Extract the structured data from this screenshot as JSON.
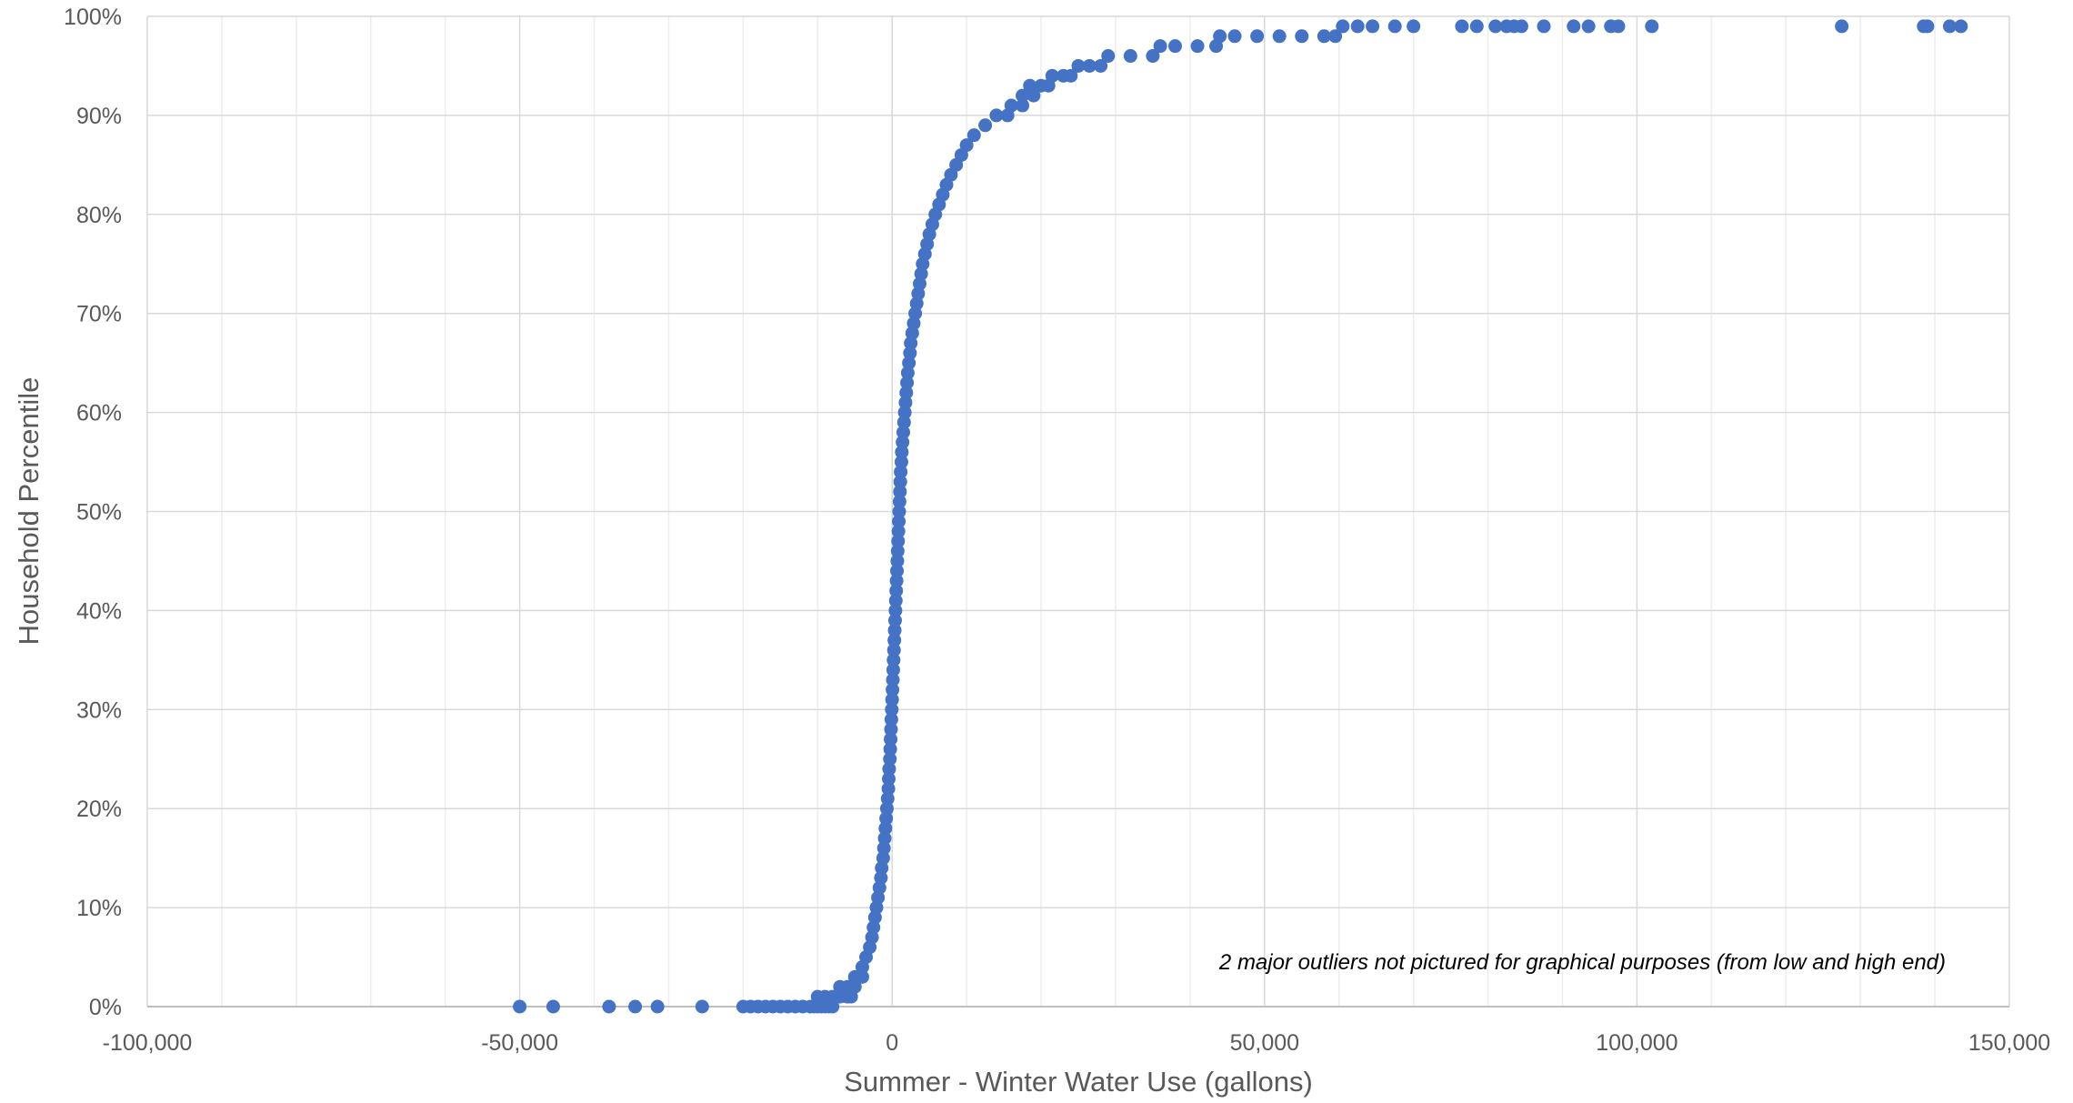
{
  "chart_data": {
    "type": "scatter",
    "title": "",
    "xlabel": "Summer - Winter Water Use (gallons)",
    "ylabel": "Household Percentile",
    "xlim": [
      -100000,
      150000
    ],
    "ylim": [
      0,
      100
    ],
    "x_ticks": [
      "-100,000",
      "-50,000",
      "0",
      "50,000",
      "100,000",
      "150,000"
    ],
    "y_ticks": [
      "0%",
      "10%",
      "20%",
      "30%",
      "40%",
      "50%",
      "60%",
      "70%",
      "80%",
      "90%",
      "100%"
    ],
    "grid": true,
    "legend": "none",
    "color": "#4472C4",
    "annotation": "2 major outliers not pictured for graphical purposes (from low and high end)",
    "series": [
      {
        "points": [
          [
            -50000,
            0
          ],
          [
            -45500,
            0
          ],
          [
            -38000,
            0
          ],
          [
            -34500,
            0
          ],
          [
            -31500,
            0
          ],
          [
            -25500,
            0
          ],
          [
            -20000,
            0
          ],
          [
            -19000,
            0
          ],
          [
            -18000,
            0
          ],
          [
            -17000,
            0
          ],
          [
            -16000,
            0
          ],
          [
            -15000,
            0
          ],
          [
            -14000,
            0
          ],
          [
            -13000,
            0
          ],
          [
            -12000,
            0
          ],
          [
            -11000,
            0
          ],
          [
            -10500,
            0
          ],
          [
            -10000,
            0
          ],
          [
            -9500,
            0
          ],
          [
            -9000,
            0
          ],
          [
            -8500,
            0
          ],
          [
            -8000,
            0
          ],
          [
            -10000,
            1
          ],
          [
            -9000,
            1
          ],
          [
            -8000,
            1
          ],
          [
            -7000,
            1
          ],
          [
            -6000,
            1
          ],
          [
            -5500,
            1
          ],
          [
            -7000,
            2
          ],
          [
            -6000,
            2
          ],
          [
            -5000,
            2
          ],
          [
            -5000,
            3
          ],
          [
            -4000,
            3
          ],
          [
            -4000,
            4
          ],
          [
            -3500,
            5
          ],
          [
            -3000,
            6
          ],
          [
            -2700,
            7
          ],
          [
            -2500,
            8
          ],
          [
            -2300,
            9
          ],
          [
            -2100,
            10
          ],
          [
            -1900,
            11
          ],
          [
            -1700,
            12
          ],
          [
            -1500,
            13
          ],
          [
            -1400,
            14
          ],
          [
            -1200,
            15
          ],
          [
            -1100,
            16
          ],
          [
            -1000,
            17
          ],
          [
            -900,
            18
          ],
          [
            -800,
            19
          ],
          [
            -700,
            20
          ],
          [
            -600,
            21
          ],
          [
            -500,
            22
          ],
          [
            -450,
            23
          ],
          [
            -400,
            24
          ],
          [
            -300,
            25
          ],
          [
            -250,
            26
          ],
          [
            -200,
            27
          ],
          [
            -150,
            28
          ],
          [
            -100,
            29
          ],
          [
            -50,
            30
          ],
          [
            0,
            31
          ],
          [
            50,
            32
          ],
          [
            100,
            33
          ],
          [
            150,
            34
          ],
          [
            200,
            35
          ],
          [
            250,
            36
          ],
          [
            300,
            37
          ],
          [
            350,
            38
          ],
          [
            400,
            39
          ],
          [
            450,
            40
          ],
          [
            500,
            41
          ],
          [
            550,
            42
          ],
          [
            600,
            43
          ],
          [
            650,
            44
          ],
          [
            700,
            45
          ],
          [
            750,
            46
          ],
          [
            800,
            47
          ],
          [
            850,
            48
          ],
          [
            900,
            49
          ],
          [
            950,
            50
          ],
          [
            1000,
            51
          ],
          [
            1050,
            52
          ],
          [
            1100,
            53
          ],
          [
            1150,
            54
          ],
          [
            1250,
            55
          ],
          [
            1300,
            56
          ],
          [
            1400,
            57
          ],
          [
            1500,
            58
          ],
          [
            1600,
            59
          ],
          [
            1700,
            60
          ],
          [
            1800,
            61
          ],
          [
            1900,
            62
          ],
          [
            2000,
            63
          ],
          [
            2100,
            64
          ],
          [
            2250,
            65
          ],
          [
            2400,
            66
          ],
          [
            2500,
            67
          ],
          [
            2700,
            68
          ],
          [
            2900,
            69
          ],
          [
            3100,
            70
          ],
          [
            3300,
            71
          ],
          [
            3500,
            72
          ],
          [
            3700,
            73
          ],
          [
            3900,
            74
          ],
          [
            4100,
            75
          ],
          [
            4400,
            76
          ],
          [
            4700,
            77
          ],
          [
            5000,
            78
          ],
          [
            5400,
            79
          ],
          [
            5800,
            80
          ],
          [
            6300,
            81
          ],
          [
            6800,
            82
          ],
          [
            7300,
            83
          ],
          [
            7900,
            84
          ],
          [
            8600,
            85
          ],
          [
            9300,
            86
          ],
          [
            10000,
            87
          ],
          [
            11000,
            88
          ],
          [
            12500,
            89
          ],
          [
            14000,
            90
          ],
          [
            15500,
            90
          ],
          [
            16000,
            91
          ],
          [
            17500,
            91
          ],
          [
            17500,
            92
          ],
          [
            19000,
            92
          ],
          [
            18500,
            93
          ],
          [
            20000,
            93
          ],
          [
            21000,
            93
          ],
          [
            21500,
            94
          ],
          [
            23000,
            94
          ],
          [
            24000,
            94
          ],
          [
            25000,
            95
          ],
          [
            26500,
            95
          ],
          [
            28000,
            95
          ],
          [
            29000,
            96
          ],
          [
            32000,
            96
          ],
          [
            35000,
            96
          ],
          [
            36000,
            97
          ],
          [
            38000,
            97
          ],
          [
            41000,
            97
          ],
          [
            43500,
            97
          ],
          [
            44000,
            98
          ],
          [
            46000,
            98
          ],
          [
            49000,
            98
          ],
          [
            52000,
            98
          ],
          [
            55000,
            98
          ],
          [
            58000,
            98
          ],
          [
            59500,
            98
          ],
          [
            60500,
            99
          ],
          [
            62500,
            99
          ],
          [
            64500,
            99
          ],
          [
            67500,
            99
          ],
          [
            70000,
            99
          ],
          [
            76500,
            99
          ],
          [
            78500,
            99
          ],
          [
            81000,
            99
          ],
          [
            82500,
            99
          ],
          [
            83500,
            99
          ],
          [
            84500,
            99
          ],
          [
            87500,
            99
          ],
          [
            91500,
            99
          ],
          [
            93500,
            99
          ],
          [
            96500,
            99
          ],
          [
            97500,
            99
          ],
          [
            102000,
            99
          ],
          [
            127500,
            99
          ],
          [
            138500,
            99
          ],
          [
            139000,
            99
          ],
          [
            142000,
            99
          ],
          [
            143500,
            99
          ]
        ]
      }
    ]
  }
}
